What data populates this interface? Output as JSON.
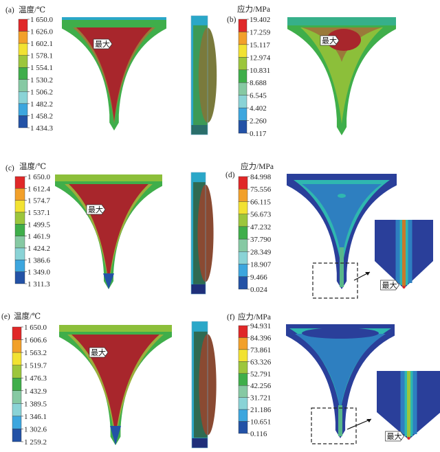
{
  "colormap": [
    "#e02828",
    "#f2a02a",
    "#f2e232",
    "#9cc63c",
    "#3fae4a",
    "#86c9a3",
    "#8ad3d6",
    "#3da6de",
    "#2352a6"
  ],
  "max_label": "最大",
  "panels": [
    {
      "label": "(a)",
      "title": "温度/℃",
      "ticks": [
        "1 650.0",
        "1 626.0",
        "1 602.1",
        "1 578.1",
        "1 554.1",
        "1 530.2",
        "1 506.2",
        "1 482.2",
        "1 458.2",
        "1 434.3"
      ]
    },
    {
      "label": "(b)",
      "title": "应力/MPa",
      "ticks": [
        "19.402",
        "17.259",
        "15.117",
        "12.974",
        "10.831",
        "8.688",
        "6.545",
        "4.402",
        "2.260",
        "0.117"
      ]
    },
    {
      "label": "(c)",
      "title": "温度/℃",
      "ticks": [
        "1 650.0",
        "1 612.4",
        "1 574.7",
        "1 537.1",
        "1 499.5",
        "1 461.9",
        "1 424.2",
        "1 386.6",
        "1 349.0",
        "1 311.3"
      ]
    },
    {
      "label": "(d)",
      "title": "应力/MPa",
      "ticks": [
        "84.998",
        "75.556",
        "66.115",
        "56.673",
        "47.232",
        "37.790",
        "28.349",
        "18.907",
        "9.466",
        "0.024"
      ]
    },
    {
      "label": "(e)",
      "title": "温度/℃",
      "ticks": [
        "1 650.0",
        "1 606.6",
        "1 563.2",
        "1 519.7",
        "1 476.3",
        "1 432.9",
        "1 389.5",
        "1 346.1",
        "1 302.6",
        "1 259.2"
      ]
    },
    {
      "label": "(f)",
      "title": "应力/MPa",
      "ticks": [
        "94.931",
        "84.396",
        "73.861",
        "63.326",
        "52.791",
        "42.256",
        "31.721",
        "21.186",
        "10.651",
        "0.116"
      ]
    }
  ]
}
